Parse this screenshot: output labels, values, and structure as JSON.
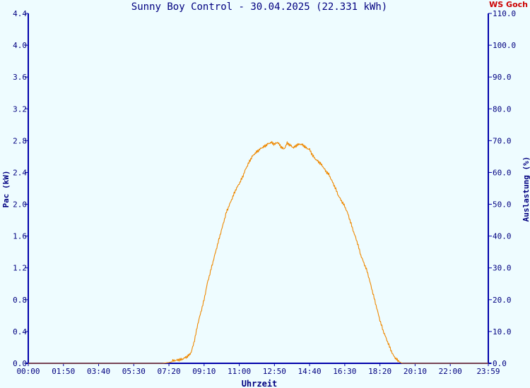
{
  "header": {
    "brand": "WS Goch"
  },
  "colors": {
    "background": "#eefcff",
    "axis": "#0000aa",
    "text": "#000080",
    "line": "#ee8800",
    "brand": "#cc0000"
  },
  "chart_data": {
    "type": "line",
    "title": "Sunny Boy Control - 30.04.2025 (22.331 kWh)",
    "xlabel": "Uhrzeit",
    "ylabel": "Pac (kW)",
    "y2label": "Auslastung (%)",
    "grid": false,
    "legend": "none",
    "xlim": [
      0,
      1439
    ],
    "ylim": [
      0,
      4.4
    ],
    "y2lim": [
      0,
      110
    ],
    "x_ticks": [
      {
        "v": 0,
        "label": "00:00"
      },
      {
        "v": 110,
        "label": "01:50"
      },
      {
        "v": 220,
        "label": "03:40"
      },
      {
        "v": 330,
        "label": "05:30"
      },
      {
        "v": 440,
        "label": "07:20"
      },
      {
        "v": 550,
        "label": "09:10"
      },
      {
        "v": 660,
        "label": "11:00"
      },
      {
        "v": 770,
        "label": "12:50"
      },
      {
        "v": 880,
        "label": "14:40"
      },
      {
        "v": 990,
        "label": "16:30"
      },
      {
        "v": 1100,
        "label": "18:20"
      },
      {
        "v": 1210,
        "label": "20:10"
      },
      {
        "v": 1320,
        "label": "22:00"
      },
      {
        "v": 1439,
        "label": "23:59"
      }
    ],
    "y_ticks": [
      "0.0",
      "0.4",
      "0.8",
      "1.2",
      "1.6",
      "2.0",
      "2.4",
      "2.8",
      "3.2",
      "3.6",
      "4.0",
      "4.4"
    ],
    "y2_ticks": [
      "0.0",
      "10.0",
      "20.0",
      "30.0",
      "40.0",
      "50.0",
      "60.0",
      "70.0",
      "80.0",
      "90.0",
      "100.0",
      "110.0"
    ],
    "series": [
      {
        "x": [
          0,
          420,
          440,
          460,
          480,
          500,
          510,
          520,
          530,
          540,
          550,
          560,
          570,
          580,
          590,
          600,
          610,
          620,
          630,
          640,
          650,
          660,
          670,
          680,
          690,
          700,
          710,
          720,
          730,
          740,
          750,
          760,
          770,
          780,
          790,
          800,
          810,
          820,
          830,
          840,
          850,
          860,
          870,
          880,
          890,
          900,
          910,
          920,
          930,
          940,
          950,
          960,
          970,
          980,
          990,
          1000,
          1010,
          1020,
          1030,
          1040,
          1050,
          1060,
          1070,
          1080,
          1090,
          1100,
          1110,
          1120,
          1130,
          1140,
          1150,
          1160,
          1170,
          1180,
          1190,
          1200,
          1210,
          1220,
          1439
        ],
        "values": [
          0.0,
          0.0,
          0.01,
          0.03,
          0.05,
          0.1,
          0.15,
          0.3,
          0.5,
          0.65,
          0.8,
          1.0,
          1.15,
          1.3,
          1.45,
          1.6,
          1.75,
          1.9,
          2.0,
          2.1,
          2.2,
          2.27,
          2.35,
          2.45,
          2.53,
          2.6,
          2.64,
          2.67,
          2.7,
          2.72,
          2.75,
          2.77,
          2.75,
          2.78,
          2.73,
          2.7,
          2.78,
          2.75,
          2.72,
          2.75,
          2.76,
          2.74,
          2.7,
          2.68,
          2.6,
          2.55,
          2.52,
          2.48,
          2.42,
          2.38,
          2.3,
          2.22,
          2.12,
          2.05,
          1.98,
          1.88,
          1.75,
          1.62,
          1.5,
          1.35,
          1.25,
          1.15,
          1.0,
          0.85,
          0.7,
          0.55,
          0.42,
          0.32,
          0.22,
          0.12,
          0.06,
          0.02,
          0.0,
          0.0,
          0.0,
          0.0,
          0.0,
          0.0,
          0.0
        ]
      }
    ]
  }
}
